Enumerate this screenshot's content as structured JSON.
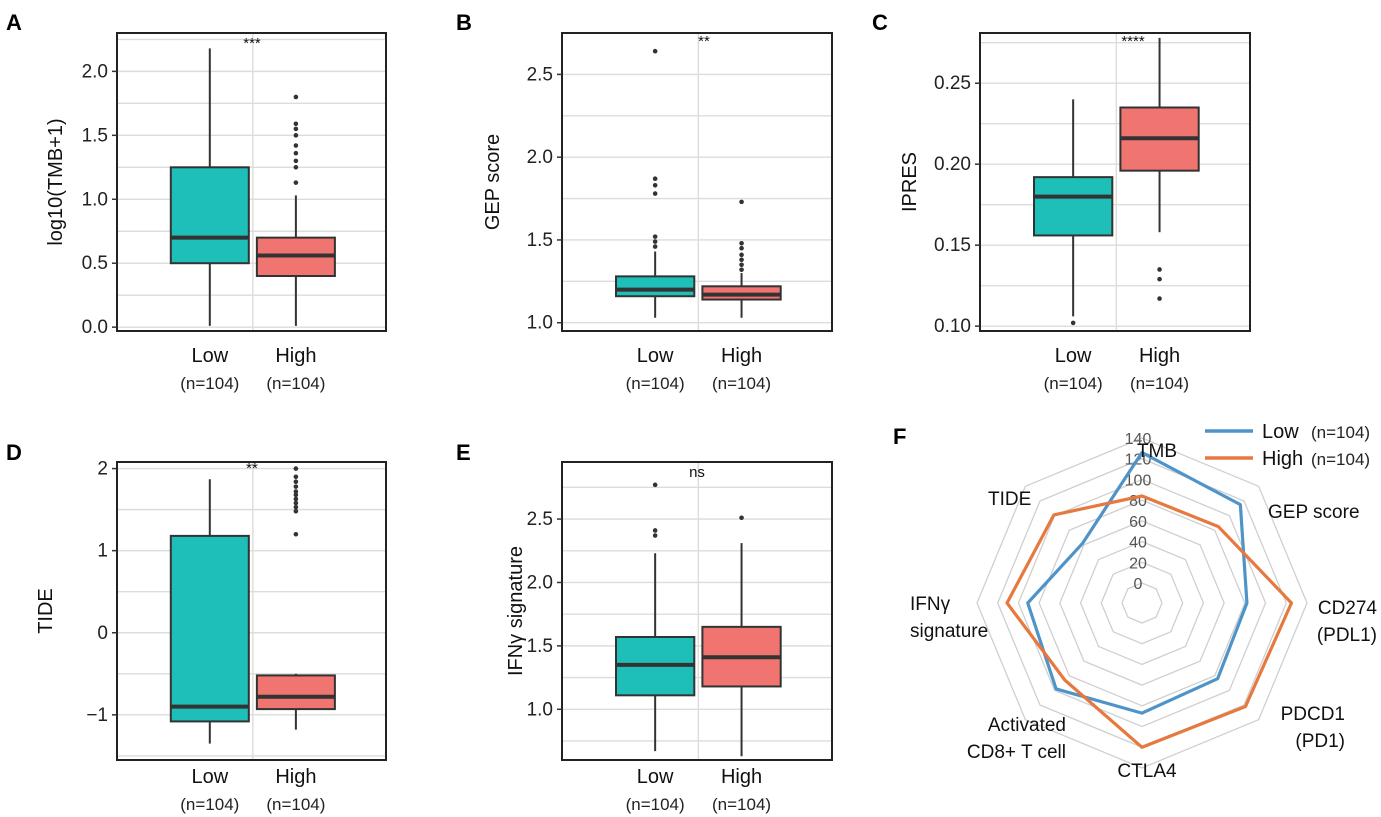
{
  "colors": {
    "low": "#1dbfb8",
    "high": "#f07470",
    "radar_low": "#4f94c9",
    "radar_high": "#e6793f"
  },
  "chart_data": [
    {
      "panel": "A",
      "type": "box",
      "ylabel": "log10(TMB+1)",
      "ylim": [
        -0.03,
        2.3
      ],
      "ticks": [
        0.0,
        0.5,
        1.0,
        1.5,
        2.0
      ],
      "tick_labels": [
        "0.0",
        "0.5",
        "1.0",
        "1.5",
        "2.0"
      ],
      "categories": [
        "Low",
        "High"
      ],
      "counts": [
        "(n=104)",
        "(n=104)"
      ],
      "significance": "***",
      "boxes": [
        {
          "group": "Low",
          "min": 0.01,
          "q1": 0.5,
          "median": 0.7,
          "q3": 1.25,
          "max": 2.18,
          "outliers": []
        },
        {
          "group": "High",
          "min": 0.01,
          "q1": 0.4,
          "median": 0.56,
          "q3": 0.7,
          "max": 1.03,
          "outliers": [
            1.13,
            1.25,
            1.3,
            1.36,
            1.42,
            1.5,
            1.55,
            1.59,
            1.8
          ]
        }
      ]
    },
    {
      "panel": "B",
      "type": "box",
      "ylabel": "GEP score",
      "ylim": [
        0.95,
        2.75
      ],
      "ticks": [
        1.0,
        1.5,
        2.0,
        2.5
      ],
      "tick_labels": [
        "1.0",
        "1.5",
        "2.0",
        "2.5"
      ],
      "categories": [
        "Low",
        "High"
      ],
      "counts": [
        "(n=104)",
        "(n=104)"
      ],
      "significance": "**",
      "boxes": [
        {
          "group": "Low",
          "min": 1.03,
          "q1": 1.16,
          "median": 1.2,
          "q3": 1.28,
          "max": 1.43,
          "outliers": [
            1.46,
            1.49,
            1.52,
            1.78,
            1.83,
            1.87,
            2.64
          ]
        },
        {
          "group": "High",
          "min": 1.03,
          "q1": 1.14,
          "median": 1.17,
          "q3": 1.22,
          "max": 1.3,
          "outliers": [
            1.32,
            1.35,
            1.38,
            1.41,
            1.45,
            1.48,
            1.73
          ]
        }
      ]
    },
    {
      "panel": "C",
      "type": "box",
      "ylabel": "IPRES",
      "ylim": [
        0.097,
        0.281
      ],
      "ticks": [
        0.1,
        0.15,
        0.2,
        0.25
      ],
      "tick_labels": [
        "0.10",
        "0.15",
        "0.20",
        "0.25"
      ],
      "categories": [
        "Low",
        "High"
      ],
      "counts": [
        "(n=104)",
        "(n=104)"
      ],
      "significance": "****",
      "boxes": [
        {
          "group": "Low",
          "min": 0.106,
          "q1": 0.156,
          "median": 0.18,
          "q3": 0.192,
          "max": 0.24,
          "outliers": [
            0.102
          ]
        },
        {
          "group": "High",
          "min": 0.158,
          "q1": 0.196,
          "median": 0.216,
          "q3": 0.235,
          "max": 0.278,
          "outliers": [
            0.135,
            0.129,
            0.117
          ]
        }
      ]
    },
    {
      "panel": "D",
      "type": "box",
      "ylabel": "TIDE",
      "ylim": [
        -1.55,
        2.08
      ],
      "ticks": [
        -1,
        0,
        1,
        2
      ],
      "tick_labels": [
        "−1",
        "0",
        "1",
        "2"
      ],
      "categories": [
        "Low",
        "High"
      ],
      "counts": [
        "(n=104)",
        "(n=104)"
      ],
      "significance": "**",
      "boxes": [
        {
          "group": "Low",
          "min": -1.35,
          "q1": -1.08,
          "median": -0.9,
          "q3": 1.18,
          "max": 1.87,
          "outliers": []
        },
        {
          "group": "High",
          "min": -1.18,
          "q1": -0.93,
          "median": -0.78,
          "q3": -0.52,
          "max": -0.5,
          "outliers": [
            1.2,
            1.48,
            1.53,
            1.58,
            1.63,
            1.68,
            1.72,
            1.78,
            1.84,
            1.9,
            2.0
          ]
        }
      ]
    },
    {
      "panel": "E",
      "type": "box",
      "ylabel": "IFNγ  signature",
      "ylim": [
        0.6,
        2.95
      ],
      "ticks": [
        1.0,
        1.5,
        2.0,
        2.5
      ],
      "tick_labels": [
        "1.0",
        "1.5",
        "2.0",
        "2.5"
      ],
      "categories": [
        "Low",
        "High"
      ],
      "counts": [
        "(n=104)",
        "(n=104)"
      ],
      "significance": "ns",
      "boxes": [
        {
          "group": "Low",
          "min": 0.67,
          "q1": 1.11,
          "median": 1.35,
          "q3": 1.57,
          "max": 2.23,
          "outliers": [
            2.37,
            2.41,
            2.77
          ]
        },
        {
          "group": "High",
          "min": 0.63,
          "q1": 1.18,
          "median": 1.41,
          "q3": 1.65,
          "max": 2.31,
          "outliers": [
            2.51
          ]
        }
      ]
    },
    {
      "panel": "F",
      "type": "radar",
      "axes": [
        "TMB",
        "GEP score",
        "CD274\n(PDL1)",
        "PDCD1\n(PD1)",
        "CTLA4",
        "Activated\nCD8+ T cell",
        "IFNγ\nsignature",
        "TIDE"
      ],
      "rmax": 140,
      "ticks": [
        0,
        20,
        40,
        60,
        80,
        100,
        120,
        140
      ],
      "tick_labels": [
        "0",
        "20",
        "40",
        "60",
        "80",
        "100",
        "120",
        "140"
      ],
      "series": [
        {
          "name": "Low",
          "count": "(n=104)",
          "values": [
            126,
            115,
            82,
            84,
            87,
            98,
            91,
            62
          ]
        },
        {
          "name": "High",
          "count": "(n=104)",
          "values": [
            84,
            85,
            125,
            122,
            120,
            86,
            111,
            101
          ]
        }
      ]
    }
  ]
}
